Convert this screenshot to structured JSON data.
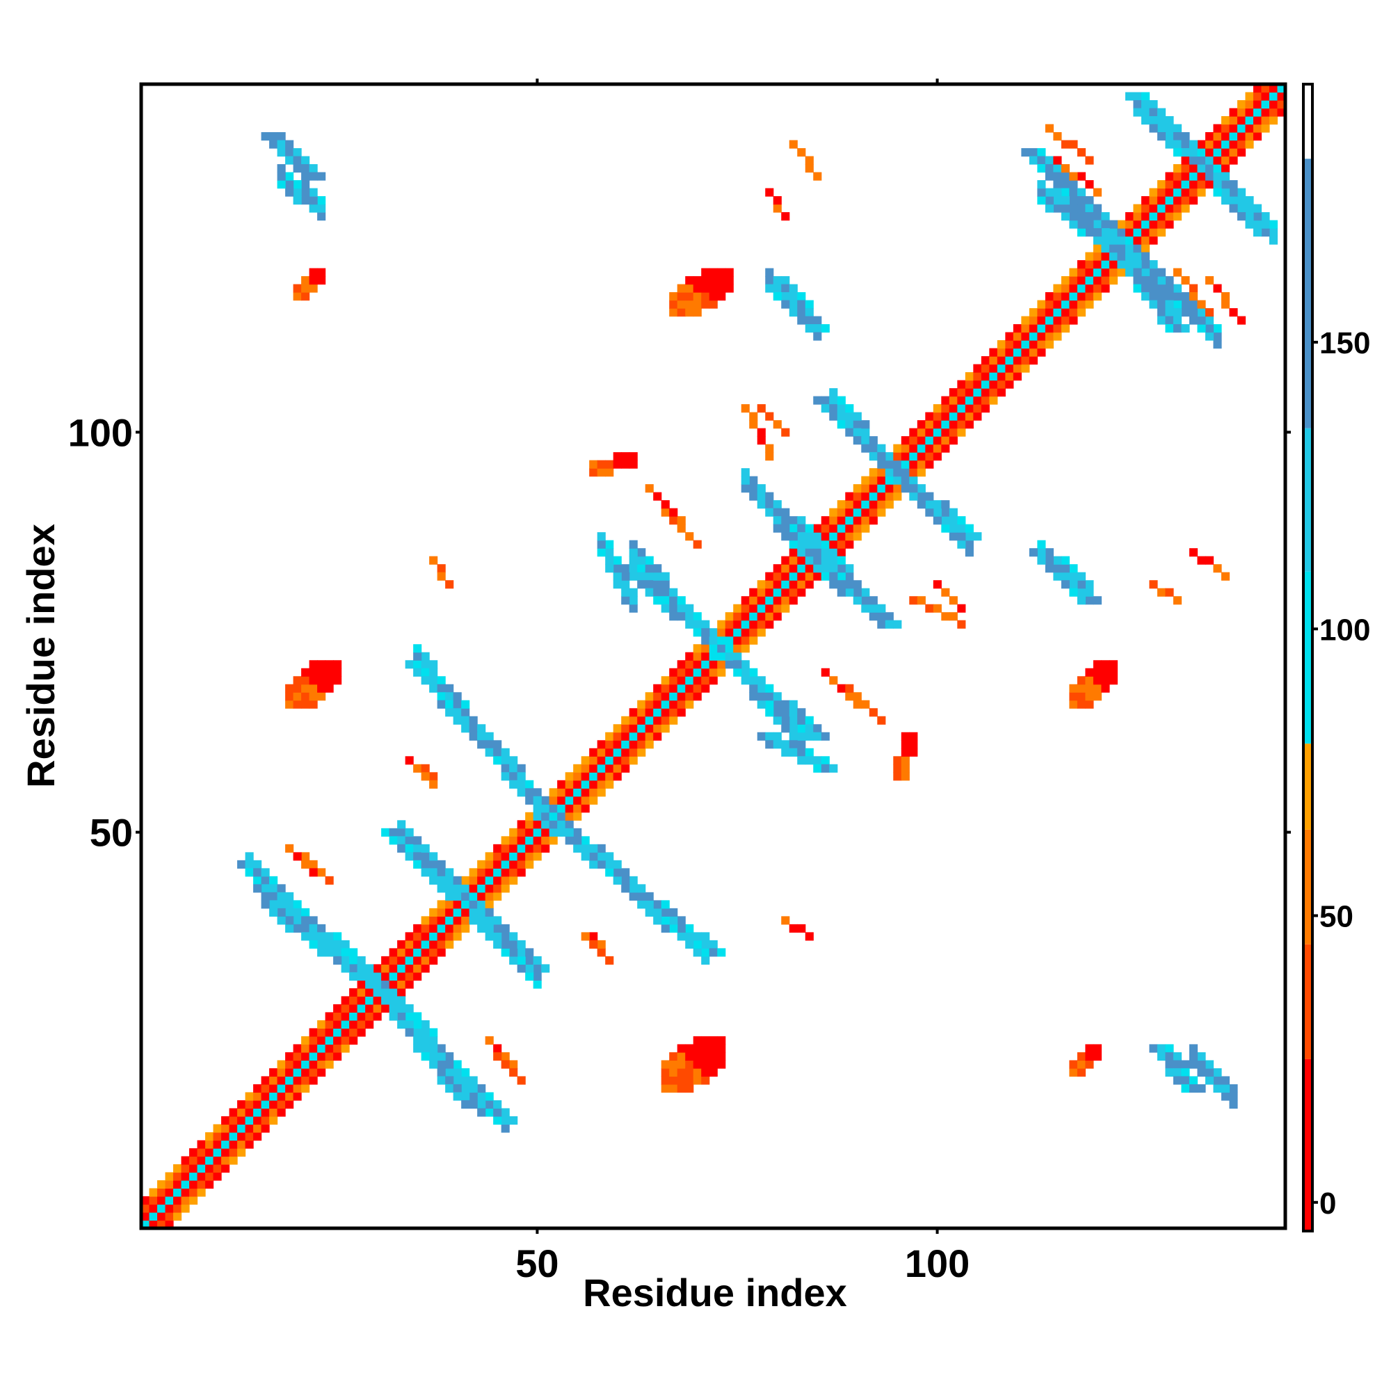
{
  "chart_data": {
    "type": "heatmap",
    "title": "",
    "xlabel": "Residue index",
    "ylabel": "Residue index",
    "xlim": [
      1,
      143
    ],
    "ylim": [
      1,
      143
    ],
    "x_ticks": [
      50,
      100
    ],
    "y_ticks": [
      50,
      100
    ],
    "grid": false,
    "legend": "colorbar-right",
    "colorbar": {
      "range": [
        -5,
        195
      ],
      "ticks": [
        0,
        50,
        100,
        150
      ],
      "segments": [
        {
          "from": -5,
          "to": 25,
          "color": "#ff0000"
        },
        {
          "from": 25,
          "to": 45,
          "color": "#ff4a00"
        },
        {
          "from": 45,
          "to": 65,
          "color": "#ff7a00"
        },
        {
          "from": 65,
          "to": 80,
          "color": "#ffa000"
        },
        {
          "from": 80,
          "to": 110,
          "color": "#00e0ee"
        },
        {
          "from": 110,
          "to": 135,
          "color": "#22c8e6"
        },
        {
          "from": 135,
          "to": 182,
          "color": "#4a90c8"
        },
        {
          "from": 182,
          "to": 195,
          "color": "#ffffff"
        }
      ]
    },
    "value_colors": {
      "red": "#ff0000",
      "red_orange": "#ff4a00",
      "orange": "#ff7a00",
      "amber": "#ffa000",
      "cyan": "#00e0ee",
      "light_blue": "#22c8e6",
      "steel_blue": "#4a90c8"
    },
    "contacts": [
      {
        "kind": "diagonal",
        "x1": 1,
        "y1": 1,
        "x2": 143,
        "y2": 143,
        "value": 30
      },
      {
        "kind": "antiparallel",
        "x1": 16,
        "y1": 44,
        "x2": 31,
        "y2": 30,
        "value": 150
      },
      {
        "kind": "antiparallel",
        "x1": 32,
        "y1": 29,
        "x2": 40,
        "y2": 18,
        "value": 150
      },
      {
        "kind": "antiparallel",
        "x1": 32,
        "y1": 50,
        "x2": 50,
        "y2": 33,
        "value": 150
      },
      {
        "kind": "antiparallel",
        "x1": 35,
        "y1": 71,
        "x2": 51,
        "y2": 53,
        "value": 150
      },
      {
        "kind": "antiparallel",
        "x1": 51,
        "y1": 52,
        "x2": 72,
        "y2": 35,
        "value": 150
      },
      {
        "kind": "antiparallel",
        "x1": 62,
        "y1": 83,
        "x2": 76,
        "y2": 70,
        "value": 150
      },
      {
        "kind": "antiparallel",
        "x1": 77,
        "y1": 69,
        "x2": 85,
        "y2": 62,
        "value": 150
      },
      {
        "kind": "antiparallel",
        "x1": 77,
        "y1": 93,
        "x2": 86,
        "y2": 85,
        "value": 150
      },
      {
        "kind": "antiparallel",
        "x1": 85,
        "y1": 84,
        "x2": 94,
        "y2": 76,
        "value": 150
      },
      {
        "kind": "antiparallel",
        "x1": 86,
        "y1": 104,
        "x2": 94,
        "y2": 96,
        "value": 150
      },
      {
        "kind": "antiparallel",
        "x1": 95,
        "y1": 95,
        "x2": 104,
        "y2": 87,
        "value": 150
      },
      {
        "kind": "antiparallel",
        "x1": 112,
        "y1": 135,
        "x2": 122,
        "y2": 125,
        "value": 150
      },
      {
        "kind": "antiparallel",
        "x1": 122,
        "y1": 124,
        "x2": 130,
        "y2": 113,
        "value": 150
      },
      {
        "kind": "antiparallel",
        "x1": 125,
        "y1": 142,
        "x2": 131,
        "y2": 136,
        "value": 150
      },
      {
        "kind": "antiparallel",
        "x1": 131,
        "y1": 136,
        "x2": 141,
        "y2": 125,
        "value": 150
      },
      {
        "kind": "antiparallel",
        "x1": 17,
        "y1": 137,
        "x2": 22,
        "y2": 132,
        "value": 150
      },
      {
        "kind": "antiparallel",
        "x1": 80,
        "y1": 119,
        "x2": 85,
        "y2": 113,
        "value": 150
      },
      {
        "kind": "antiparallel",
        "x1": 113,
        "y1": 85,
        "x2": 119,
        "y2": 79,
        "value": 150
      },
      {
        "kind": "antiparallel",
        "x1": 128,
        "y1": 23,
        "x2": 132,
        "y2": 18,
        "value": 150
      },
      {
        "kind": "antiparallel",
        "x1": 14,
        "y1": 46,
        "x2": 18,
        "y2": 42,
        "value": 150
      },
      {
        "kind": "antiparallel",
        "x1": 79,
        "y1": 62,
        "x2": 86,
        "y2": 58,
        "value": 150
      },
      {
        "kind": "antiparallel",
        "x1": 41,
        "y1": 17,
        "x2": 46,
        "y2": 14,
        "value": 150
      },
      {
        "kind": "patch",
        "x1": 19,
        "y1": 71,
        "x2": 25,
        "y2": 66,
        "value": 10
      },
      {
        "kind": "patch",
        "x1": 66,
        "y1": 24,
        "x2": 73,
        "y2": 18,
        "value": 10
      },
      {
        "kind": "patch",
        "x1": 20,
        "y1": 120,
        "x2": 23,
        "y2": 117,
        "value": 10
      },
      {
        "kind": "patch",
        "x1": 67,
        "y1": 120,
        "x2": 74,
        "y2": 115,
        "value": 10
      },
      {
        "kind": "patch",
        "x1": 117,
        "y1": 71,
        "x2": 122,
        "y2": 66,
        "value": 10
      },
      {
        "kind": "patch",
        "x1": 117,
        "y1": 23,
        "x2": 120,
        "y2": 20,
        "value": 10
      },
      {
        "kind": "patch",
        "x1": 57,
        "y1": 97,
        "x2": 62,
        "y2": 95,
        "value": 10
      },
      {
        "kind": "patch",
        "x1": 95,
        "y1": 62,
        "x2": 97,
        "y2": 57,
        "value": 10
      },
      {
        "kind": "antiparallel",
        "x1": 114,
        "y1": 138,
        "x2": 119,
        "y2": 134,
        "value": 50
      },
      {
        "kind": "antiparallel",
        "x1": 130,
        "y1": 120,
        "x2": 134,
        "y2": 115,
        "value": 50
      },
      {
        "kind": "antiparallel",
        "x1": 21,
        "y1": 47,
        "x2": 24,
        "y2": 44,
        "value": 50
      },
      {
        "kind": "antiparallel",
        "x1": 45,
        "y1": 22,
        "x2": 48,
        "y2": 19,
        "value": 50
      },
      {
        "kind": "antiparallel",
        "x1": 66,
        "y1": 90,
        "x2": 70,
        "y2": 86,
        "value": 50
      },
      {
        "kind": "antiparallel",
        "x1": 89,
        "y1": 68,
        "x2": 93,
        "y2": 64,
        "value": 50
      },
      {
        "kind": "antiparallel",
        "x1": 82,
        "y1": 136,
        "x2": 85,
        "y2": 132,
        "value": 10
      },
      {
        "kind": "antiparallel",
        "x1": 78,
        "y1": 103,
        "x2": 81,
        "y2": 100,
        "value": 50
      },
      {
        "kind": "antiparallel",
        "x1": 97,
        "y1": 79,
        "x2": 103,
        "y2": 76,
        "value": 50
      },
      {
        "kind": "antiparallel",
        "x1": 37,
        "y1": 84,
        "x2": 39,
        "y2": 81,
        "value": 10
      },
      {
        "kind": "antiparallel",
        "x1": 34,
        "y1": 59,
        "x2": 37,
        "y2": 57,
        "value": 50
      },
      {
        "kind": "antiparallel",
        "x1": 56,
        "y1": 37,
        "x2": 59,
        "y2": 34,
        "value": 50
      },
      {
        "kind": "antiparallel",
        "x1": 127,
        "y1": 81,
        "x2": 130,
        "y2": 79,
        "value": 10
      }
    ]
  }
}
